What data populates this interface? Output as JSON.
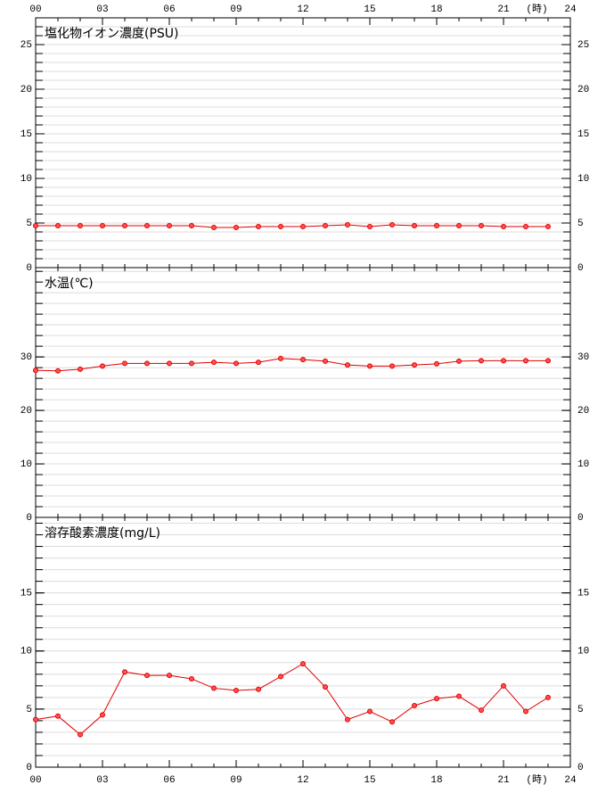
{
  "chart_data": [
    {
      "type": "line",
      "title": "塩化物イオン濃度(PSU)",
      "x": [
        0,
        1,
        2,
        3,
        4,
        5,
        6,
        7,
        8,
        9,
        10,
        11,
        12,
        13,
        14,
        15,
        16,
        17,
        18,
        19,
        20,
        21,
        22,
        23
      ],
      "xlim": [
        0,
        24
      ],
      "xticks": [
        {
          "value": 0,
          "label": "00"
        },
        {
          "value": 3,
          "label": "03"
        },
        {
          "value": 6,
          "label": "06"
        },
        {
          "value": 9,
          "label": "09"
        },
        12,
        15,
        18,
        21,
        24
      ],
      "x_unit": "(時)",
      "xtick_side": "top",
      "ylim": [
        0,
        28
      ],
      "yticks": [
        0,
        5,
        10,
        15,
        20,
        25
      ],
      "minor_ytick_step": 1,
      "series": [
        {
          "color": "#e00000",
          "values": [
            4.7,
            4.7,
            4.7,
            4.7,
            4.7,
            4.7,
            4.7,
            4.7,
            4.5,
            4.5,
            4.6,
            4.6,
            4.6,
            4.7,
            4.8,
            4.6,
            4.8,
            4.7,
            4.7,
            4.7,
            4.7,
            4.6,
            4.6,
            4.6
          ]
        }
      ]
    },
    {
      "type": "line",
      "title": "水温(℃)",
      "x": [
        0,
        1,
        2,
        3,
        4,
        5,
        6,
        7,
        8,
        9,
        10,
        11,
        12,
        13,
        14,
        15,
        16,
        17,
        18,
        19,
        20,
        21,
        22,
        23
      ],
      "xlim": [
        0,
        24
      ],
      "ylim": [
        0,
        46.7
      ],
      "yticks": [
        0,
        10,
        20,
        30
      ],
      "minor_ytick_step": 2,
      "series": [
        {
          "color": "#e00000",
          "values": [
            27.5,
            27.4,
            27.7,
            28.3,
            28.8,
            28.8,
            28.8,
            28.8,
            29.0,
            28.8,
            29.0,
            29.7,
            29.5,
            29.2,
            28.5,
            28.3,
            28.3,
            28.5,
            28.7,
            29.2,
            29.3,
            29.3,
            29.3,
            29.3
          ]
        }
      ]
    },
    {
      "type": "line",
      "title": "溶存酸素濃度(mg/L)",
      "x": [
        0,
        1,
        2,
        3,
        4,
        5,
        6,
        7,
        8,
        9,
        10,
        11,
        12,
        13,
        14,
        15,
        16,
        17,
        18,
        19,
        20,
        21,
        22,
        23
      ],
      "xlim": [
        0,
        24
      ],
      "xticks": [
        {
          "value": 0,
          "label": "00"
        },
        {
          "value": 3,
          "label": "03"
        },
        {
          "value": 6,
          "label": "06"
        },
        {
          "value": 9,
          "label": "09"
        },
        12,
        15,
        18,
        21,
        24
      ],
      "x_unit": "(時)",
      "xtick_side": "bottom",
      "ylim": [
        0,
        21.5
      ],
      "yticks": [
        0,
        5,
        10,
        15
      ],
      "minor_ytick_step": 1,
      "series": [
        {
          "color": "#e00000",
          "values": [
            4.1,
            4.4,
            2.8,
            4.5,
            8.2,
            7.9,
            7.9,
            7.6,
            6.8,
            6.6,
            6.7,
            7.8,
            8.9,
            6.9,
            4.1,
            4.8,
            3.9,
            5.3,
            5.9,
            6.1,
            4.9,
            7.0,
            4.8,
            6.0
          ]
        }
      ]
    }
  ]
}
